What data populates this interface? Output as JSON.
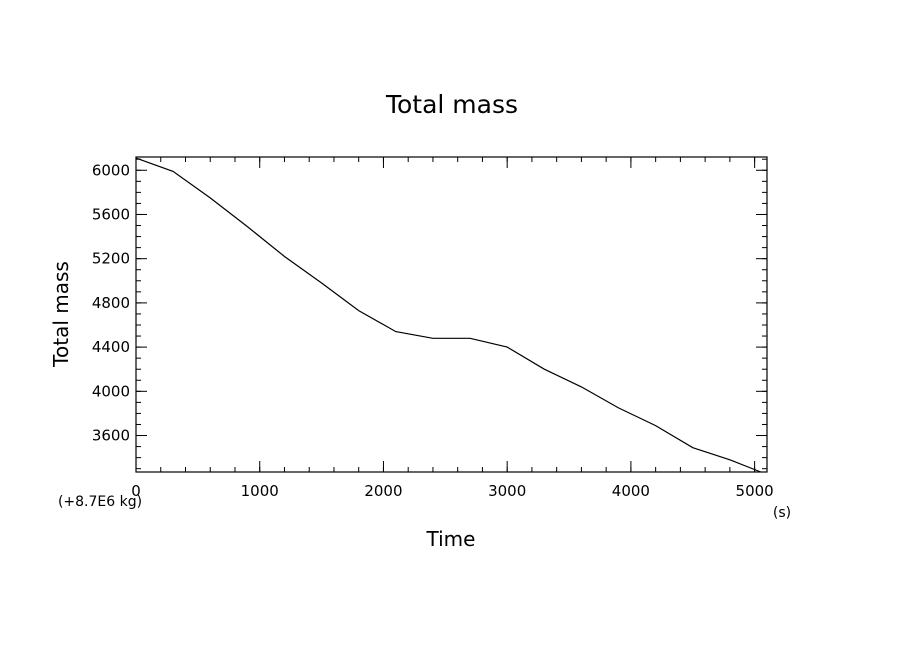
{
  "chart_data": {
    "type": "line",
    "title": "Total mass",
    "xlabel": "Time",
    "ylabel": "Total mass",
    "x_unit": "(s)",
    "y_offset_note": "(+8.7E6 kg)",
    "xlim": [
      0,
      5100
    ],
    "ylim": [
      3270,
      6120
    ],
    "x_ticks": [
      0,
      1000,
      2000,
      3000,
      4000,
      5000
    ],
    "y_ticks": [
      3600,
      4000,
      4400,
      4800,
      5200,
      5600,
      6000
    ],
    "x_minor_step": 200,
    "y_minor_step": 100,
    "grid": false,
    "line_color": "#000000",
    "series": [
      {
        "x": [
          0,
          300,
          600,
          900,
          1200,
          1500,
          1800,
          2100,
          2400,
          2700,
          3000,
          3300,
          3600,
          3900,
          4200,
          4500,
          4800,
          5050
        ],
        "y": [
          6110,
          5990,
          5750,
          5490,
          5220,
          4980,
          4730,
          4540,
          4480,
          4480,
          4400,
          4200,
          4040,
          3850,
          3690,
          3490,
          3380,
          3270
        ]
      }
    ]
  }
}
